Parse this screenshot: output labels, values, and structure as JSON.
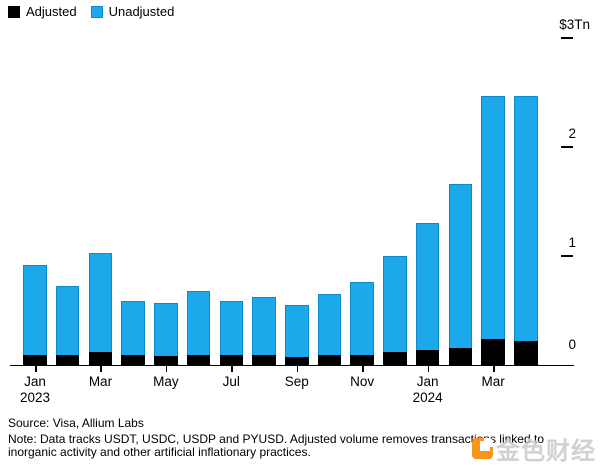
{
  "colors": {
    "adjusted": "#000000",
    "unadjusted": "#1ca9ec",
    "bar_edge": "#0d8ac8",
    "axis": "#000000",
    "watermark_orange": "#f7941d",
    "watermark_text": "#c9c9c9"
  },
  "chart_data": {
    "type": "bar",
    "mode": "overlay",
    "title": "",
    "categories": [
      "Jan 2023",
      "Feb 2023",
      "Mar 2023",
      "Apr 2023",
      "May 2023",
      "Jun 2023",
      "Jul 2023",
      "Aug 2023",
      "Sep 2023",
      "Oct 2023",
      "Nov 2023",
      "Dec 2023",
      "Jan 2024",
      "Feb 2024",
      "Mar 2024",
      "Apr 2024"
    ],
    "series": [
      {
        "name": "Adjusted",
        "color": "#000000",
        "values": [
          0.1,
          0.1,
          0.12,
          0.1,
          0.09,
          0.1,
          0.1,
          0.1,
          0.08,
          0.1,
          0.1,
          0.12,
          0.14,
          0.16,
          0.24,
          0.22
        ]
      },
      {
        "name": "Unadjusted",
        "color": "#1ca9ec",
        "values": [
          0.92,
          0.73,
          1.03,
          0.59,
          0.57,
          0.68,
          0.59,
          0.63,
          0.55,
          0.65,
          0.76,
          1.0,
          1.3,
          1.66,
          2.47,
          2.47
        ]
      }
    ],
    "ylim": [
      0,
      3
    ],
    "y_unit": "trillion USD",
    "y_ticks": [
      {
        "value": 3,
        "label": "$3Tn"
      },
      {
        "value": 2,
        "label": "2"
      },
      {
        "value": 1,
        "label": "1"
      },
      {
        "value": 0,
        "label": "0"
      }
    ],
    "x_ticks": [
      {
        "index": 0,
        "label": "Jan",
        "sublabel": "2023"
      },
      {
        "index": 2,
        "label": "Mar"
      },
      {
        "index": 4,
        "label": "May"
      },
      {
        "index": 6,
        "label": "Jul"
      },
      {
        "index": 8,
        "label": "Sep"
      },
      {
        "index": 10,
        "label": "Nov"
      },
      {
        "index": 12,
        "label": "Jan",
        "sublabel": "2024"
      },
      {
        "index": 14,
        "label": "Mar"
      }
    ],
    "legend_position": "top-left",
    "grid": false
  },
  "footer": {
    "source": "Source: Visa, Allium Labs",
    "note": "Note: Data tracks USDT, USDC, USDP and PYUSD. Adjusted volume removes transactions linked to inorganic activity and other artificial inflationary practices."
  },
  "watermark": {
    "text": "金色财经"
  }
}
